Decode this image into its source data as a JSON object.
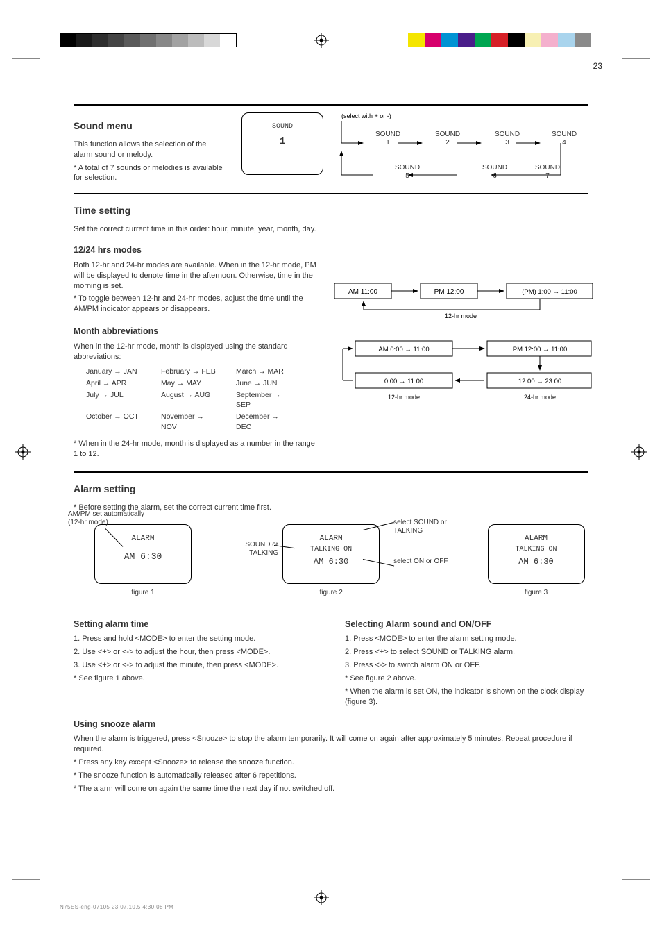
{
  "print_marks": {
    "greyscale": [
      "#000000",
      "#1a1a1a",
      "#2e2e2e",
      "#444444",
      "#5a5a5a",
      "#707070",
      "#888888",
      "#a2a2a2",
      "#bcbcbc",
      "#d8d8d8",
      "#ffffff"
    ],
    "colors": [
      "#f4e500",
      "#d6006c",
      "#0093d3",
      "#4a1e8a",
      "#00a651",
      "#d62027",
      "#000000",
      "#f7f0b3",
      "#f4b0cd",
      "#a9d4ed",
      "#8a8a8a"
    ]
  },
  "page_number": "23",
  "section1": {
    "title": "Sound menu",
    "body1": "This function allows the selection of the alarm sound or melody.",
    "body2": "* A total of 7 sounds or melodies is available for selection.",
    "screen_l1": "SOUND",
    "screen_l2": "1",
    "cycle": [
      "SOUND\n1",
      "SOUND\n2",
      "SOUND\n3",
      "SOUND\n4",
      "SOUND\n7",
      "SOUND\n6",
      "SOUND\n5"
    ],
    "note_top": "(select with + or -)"
  },
  "section2": {
    "title": "Time setting",
    "top_para": "Set the correct current time in this order: hour, minute, year, month, day.",
    "sub_hr": "12/24 hrs modes",
    "sub_hr_body": "Both 12-hr and 24-hr modes are available. When in the 12-hr mode, PM will be displayed to denote time in the afternoon. Otherwise, time in the morning is set.",
    "sub_hr_body2": "* To toggle between 12-hr and 24-hr modes, adjust the time until the AM/PM indicator appears or disappears.",
    "flow1": {
      "nodes": [
        "AM 11:00",
        "PM 12:00",
        "(PM) 1:00 → 11:00"
      ],
      "note": "12-hr mode"
    },
    "sub_month": "Month abbreviations",
    "sub_month_body": "When in the 12-hr mode, month is displayed using the standard abbreviations:",
    "months": [
      "January → JAN",
      "February → FEB",
      "March → MAR",
      "April → APR",
      "May → MAY",
      "June → JUN",
      "July → JUL",
      "August → AUG",
      "September → SEP",
      "October → OCT",
      "November → NOV",
      "December → DEC"
    ],
    "flow2": {
      "nodes": [
        "AM 0:00 → 11:00",
        "PM 12:00 → 11:00",
        "0:00 → 11:00",
        "12:00 → 23:00"
      ],
      "labels": [
        "12-hr mode",
        "24-hr mode"
      ]
    },
    "tail_note": "* When in the 24-hr mode, month is displayed as a number in the range 1 to 12."
  },
  "section3": {
    "title": "Alarm setting",
    "lead": "* Before setting the alarm, set the correct current time first.",
    "screens": [
      {
        "l1": "ALARM",
        "l2": "AM  6:30",
        "anno_tl": "AM/PM set automatically (12-hr mode)"
      },
      {
        "l1": "ALARM",
        "l2": "",
        "anno_tr": "select SOUND or TALKING",
        "anno_br": "select ON or OFF",
        "row_mid": "TALKING ON",
        "row_bot": "AM  6:30"
      },
      {
        "l1": "ALARM",
        "l2": "TALKING ON",
        "l3": "AM  6:30"
      }
    ],
    "set_steps": [
      "1. Press and hold <MODE> to enter the setting mode.",
      "2. Use <+> or <-> to adjust the hour, then press <MODE>.",
      "3. Use <+> or <-> to adjust the minute, then press <MODE>.",
      "* See figure 1 above."
    ],
    "set_heading": "Setting alarm time",
    "tog_heading": "Selecting Alarm sound and ON/OFF",
    "tog_steps": [
      "1. Press <MODE> to enter the alarm setting mode.",
      "2. Press <+> to select SOUND or TALKING alarm.",
      "3. Press <-> to switch alarm ON or OFF.",
      "* See figure 2 above.",
      "* When the alarm is set ON, the indicator is shown on the clock display (figure 3)."
    ],
    "snooze_heading": "Using snooze alarm",
    "snooze_body": [
      "When the alarm is triggered, press <Snooze> to stop the alarm temporarily. It will come on again after approximately 5 minutes. Repeat procedure if required.",
      "* Press any key except <Snooze> to release the snooze function.",
      "* The snooze function is automatically released after 6 repetitions.",
      "* The alarm will come on again the same time the next day if not switched off."
    ],
    "fig_labels": [
      "figure 1",
      "figure 2",
      "figure 3"
    ]
  },
  "footer_stamp": "N75ES-eng-07105   23                                                                    07.10.5   4:30:08 PM"
}
